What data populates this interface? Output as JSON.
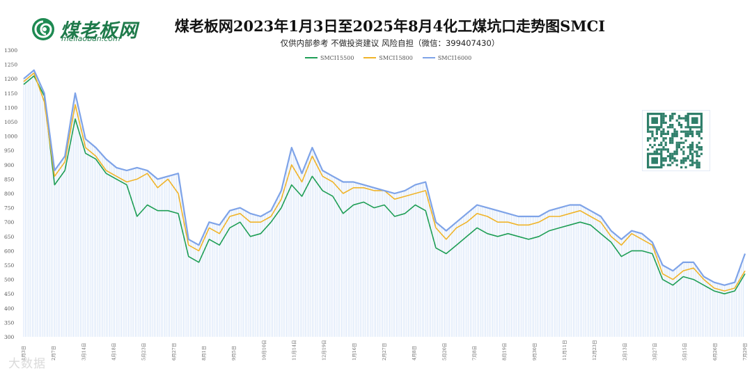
{
  "logo": {
    "name": "煤老板网",
    "domain": "meilaoban.com"
  },
  "title": "煤老板网2023年1月3日至2025年8月4化工煤坑口走势图SMCI",
  "subtitle": "仅供内部参考 不做投资建议 风险自担（微信：399407430）",
  "watermark": "大数据",
  "colors": {
    "s15500": "#1e9e55",
    "s15800": "#f0b429",
    "s16000": "#7ea3e8",
    "fill": "#c9dbf6"
  },
  "chart_data": {
    "type": "line",
    "title": "煤老板网2023年1月3日至2025年8月4化工煤坑口走势图SMCI",
    "ylim": [
      300,
      1300
    ],
    "yticks": [
      300,
      350,
      400,
      450,
      500,
      550,
      600,
      650,
      700,
      750,
      800,
      850,
      900,
      950,
      1000,
      1050,
      1100,
      1150,
      1200,
      1250,
      1300
    ],
    "grid": false,
    "legend_position": "top-center",
    "x_tick_labels": [
      "1月3日",
      "2月7日",
      "3月14日",
      "4月18日",
      "5月23日",
      "6月27日",
      "8月1日",
      "9月5日",
      "10月10日",
      "11月14日",
      "12月19日",
      "1月16日",
      "2月27日",
      "4月8日",
      "5月20日",
      "7月8日",
      "8月19日",
      "9月30日",
      "11月11日",
      "12月23日",
      "2月13日",
      "3月27日",
      "5月15日",
      "6月26日",
      "7月29日"
    ],
    "x": [
      0,
      2,
      4,
      6,
      8,
      10,
      12,
      14,
      16,
      18,
      20,
      22,
      24,
      26,
      28,
      30,
      32,
      34,
      36,
      38,
      40,
      42,
      44,
      46,
      48,
      50,
      52,
      54,
      56,
      58,
      60,
      62,
      64,
      66,
      68,
      70,
      72,
      74,
      76,
      78,
      80,
      82,
      84,
      86,
      88,
      90,
      92,
      94,
      96,
      98,
      100,
      102,
      104,
      106,
      108,
      110,
      112,
      114,
      116,
      118,
      120,
      122,
      124,
      126,
      128,
      130,
      132,
      134,
      136,
      138,
      140
    ],
    "series": [
      {
        "name": "SMCI15500",
        "values": [
          1180,
          1210,
          1140,
          830,
          880,
          1060,
          940,
          920,
          870,
          850,
          830,
          720,
          760,
          740,
          740,
          730,
          580,
          560,
          640,
          620,
          680,
          700,
          650,
          660,
          700,
          750,
          830,
          790,
          860,
          810,
          790,
          730,
          760,
          770,
          750,
          760,
          720,
          730,
          760,
          740,
          610,
          590,
          620,
          650,
          680,
          660,
          650,
          660,
          650,
          640,
          650,
          670,
          680,
          690,
          700,
          690,
          660,
          630,
          580,
          600,
          600,
          590,
          500,
          480,
          510,
          500,
          480,
          460,
          450,
          460,
          520
        ]
      },
      {
        "name": "SMCI15800",
        "values": [
          1190,
          1220,
          1120,
          860,
          910,
          1110,
          960,
          930,
          880,
          860,
          840,
          850,
          870,
          820,
          850,
          800,
          620,
          600,
          680,
          660,
          720,
          730,
          700,
          700,
          720,
          780,
          900,
          840,
          930,
          860,
          840,
          800,
          820,
          820,
          810,
          810,
          780,
          790,
          800,
          810,
          680,
          640,
          680,
          700,
          730,
          720,
          700,
          700,
          690,
          690,
          700,
          720,
          720,
          730,
          740,
          720,
          700,
          650,
          620,
          660,
          640,
          620,
          520,
          500,
          530,
          540,
          500,
          470,
          460,
          470,
          530
        ]
      },
      {
        "name": "SMCI16000",
        "values": [
          1200,
          1230,
          1150,
          880,
          930,
          1150,
          990,
          960,
          920,
          890,
          880,
          890,
          880,
          850,
          860,
          870,
          640,
          620,
          700,
          690,
          740,
          750,
          730,
          720,
          740,
          810,
          960,
          870,
          960,
          880,
          860,
          840,
          840,
          830,
          820,
          810,
          800,
          810,
          830,
          840,
          700,
          670,
          700,
          730,
          760,
          750,
          740,
          730,
          720,
          720,
          720,
          740,
          750,
          760,
          760,
          740,
          720,
          670,
          640,
          670,
          660,
          630,
          550,
          530,
          560,
          560,
          510,
          490,
          480,
          490,
          590
        ]
      }
    ]
  }
}
